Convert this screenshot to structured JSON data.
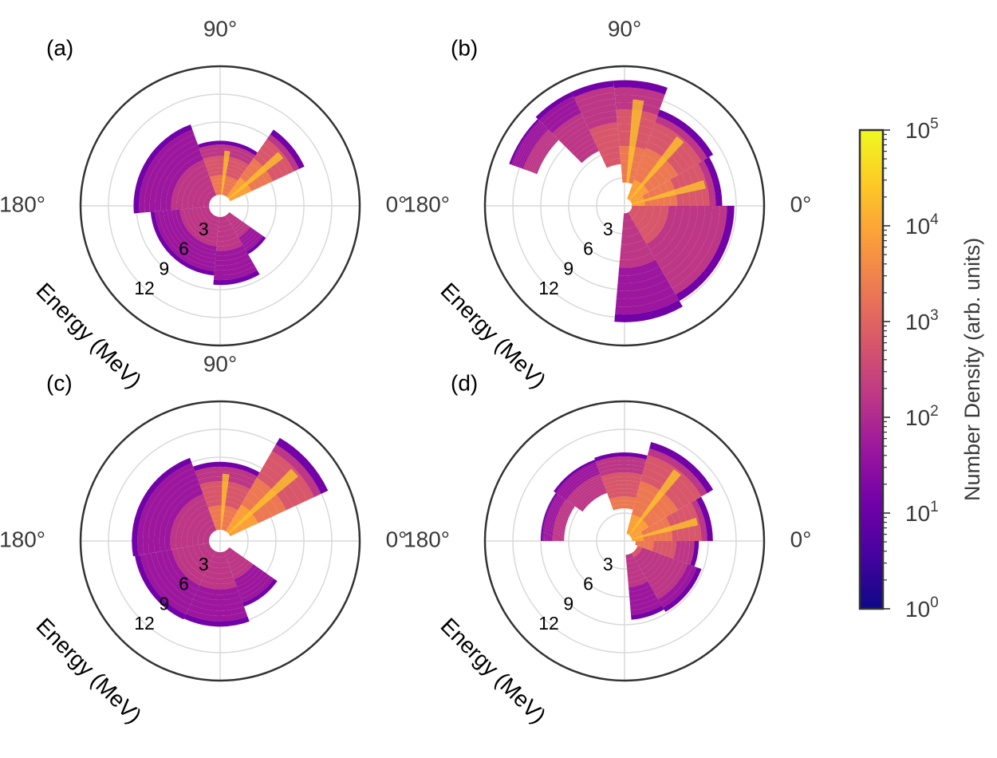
{
  "chart_data": [
    {
      "panel": "(a)",
      "type": "polar-heatmap",
      "radial_label": "Energy (MeV)",
      "radial_ticks": [
        "3",
        "6",
        "9",
        "12"
      ],
      "angle_ticks": [
        "90°",
        "180°",
        "0°"
      ],
      "rmax": 15,
      "lobes": [
        {
          "a0": 25,
          "a1": 55,
          "e0": 1.2,
          "e1": 10
        },
        {
          "a0": 55,
          "a1": 110,
          "e0": 1.2,
          "e1": 7
        },
        {
          "a0": 110,
          "a1": 185,
          "e0": 1.2,
          "e1": 9.3
        },
        {
          "a0": 185,
          "a1": 265,
          "e0": 1.2,
          "e1": 7.5
        },
        {
          "a0": 265,
          "a1": 300,
          "e0": 1.2,
          "e1": 8.5
        },
        {
          "a0": 300,
          "a1": 325,
          "e0": 1.2,
          "e1": 6
        }
      ]
    },
    {
      "panel": "(b)",
      "type": "polar-heatmap",
      "radial_label": "Energy (MeV)",
      "radial_ticks": [
        "3",
        "6",
        "9",
        "12"
      ],
      "angle_ticks": [
        "90°",
        "180°",
        "0°"
      ],
      "rmax": 15,
      "lobes": [
        {
          "a0": 265,
          "a1": 300,
          "e0": 0.8,
          "e1": 12.5
        },
        {
          "a0": 300,
          "a1": 360,
          "e0": 0.8,
          "e1": 11.8
        },
        {
          "a0": 0,
          "a1": 30,
          "e0": 0.8,
          "e1": 10.5
        },
        {
          "a0": 30,
          "a1": 70,
          "e0": 0.8,
          "e1": 11
        },
        {
          "a0": 70,
          "a1": 95,
          "e0": 2.5,
          "e1": 13.5
        },
        {
          "a0": 95,
          "a1": 115,
          "e0": 4.5,
          "e1": 13.5
        },
        {
          "a0": 115,
          "a1": 135,
          "e0": 6.5,
          "e1": 13.5
        },
        {
          "a0": 135,
          "a1": 160,
          "e0": 10,
          "e1": 13.2
        }
      ]
    },
    {
      "panel": "(c)",
      "type": "polar-heatmap",
      "radial_label": "Energy (MeV)",
      "radial_ticks": [
        "3",
        "6",
        "9",
        "12"
      ],
      "angle_ticks": [
        "90°",
        "180°",
        "0°"
      ],
      "rmax": 15,
      "lobes": [
        {
          "a0": 25,
          "a1": 60,
          "e0": 1.2,
          "e1": 12.8
        },
        {
          "a0": 60,
          "a1": 110,
          "e0": 1.2,
          "e1": 8.5
        },
        {
          "a0": 110,
          "a1": 190,
          "e0": 1.2,
          "e1": 9.5
        },
        {
          "a0": 190,
          "a1": 245,
          "e0": 1.2,
          "e1": 9.3
        },
        {
          "a0": 245,
          "a1": 290,
          "e0": 1.2,
          "e1": 9.2
        },
        {
          "a0": 290,
          "a1": 325,
          "e0": 1.2,
          "e1": 7.5
        }
      ]
    },
    {
      "panel": "(d)",
      "type": "polar-heatmap",
      "radial_label": "Energy (MeV)",
      "radial_ticks": [
        "3",
        "6",
        "9",
        "12"
      ],
      "angle_ticks": [
        "180°",
        "0°"
      ],
      "rmax": 15,
      "lobes": [
        {
          "a0": 275,
          "a1": 300,
          "e0": 1.5,
          "e1": 8.5
        },
        {
          "a0": 300,
          "a1": 340,
          "e0": 1.5,
          "e1": 8.8
        },
        {
          "a0": 340,
          "a1": 360,
          "e0": 1.2,
          "e1": 8
        },
        {
          "a0": 0,
          "a1": 30,
          "e0": 0.8,
          "e1": 9.5
        },
        {
          "a0": 30,
          "a1": 75,
          "e0": 0.8,
          "e1": 11
        },
        {
          "a0": 75,
          "a1": 110,
          "e0": 3.5,
          "e1": 9.5
        },
        {
          "a0": 110,
          "a1": 145,
          "e0": 5.5,
          "e1": 9.3
        },
        {
          "a0": 145,
          "a1": 180,
          "e0": 6.5,
          "e1": 9
        }
      ]
    }
  ],
  "colorbar": {
    "label": "Number Density (arb. units)",
    "colormap": "plasma",
    "scale": "log",
    "ticks": [
      {
        "base": "10",
        "exp": "0"
      },
      {
        "base": "10",
        "exp": "1"
      },
      {
        "base": "10",
        "exp": "2"
      },
      {
        "base": "10",
        "exp": "3"
      },
      {
        "base": "10",
        "exp": "4"
      },
      {
        "base": "10",
        "exp": "5"
      }
    ],
    "range_exp": [
      0,
      5
    ]
  },
  "colors": {
    "plasma": [
      "#0d0887",
      "#46039f",
      "#7201a8",
      "#9c179e",
      "#bd3786",
      "#d8576b",
      "#ed7953",
      "#fb9f3a",
      "#fdca26",
      "#f0f921"
    ],
    "outline": "#333333",
    "grid": "#d9d9d9"
  }
}
